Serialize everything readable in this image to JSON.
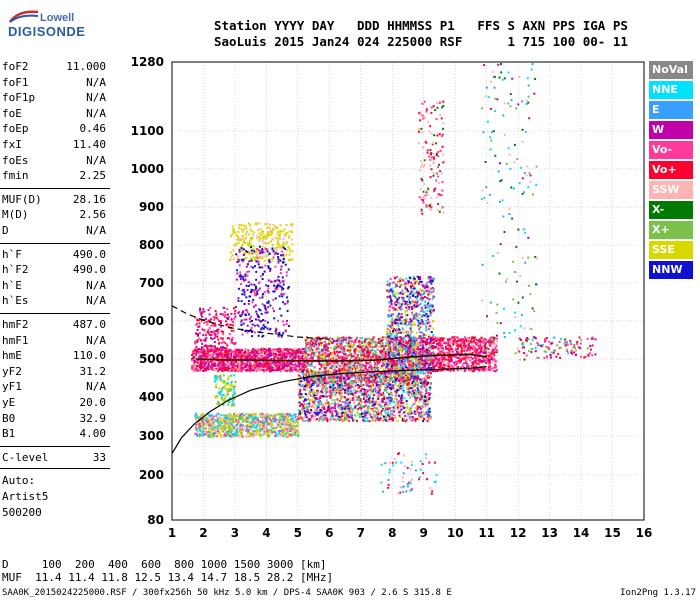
{
  "logo": {
    "line1": "Lowell",
    "line2": "DIGISONDE"
  },
  "header": {
    "line1": "Station YYYY DAY   DDD HHMMSS P1   FFS S AXN PPS IGA PS",
    "line2": "SaoLuis 2015 Jan24 024 225000 RSF      1 715 100 00- 11"
  },
  "params": [
    {
      "label": "foF2",
      "value": "11.000"
    },
    {
      "label": "foF1",
      "value": "N/A"
    },
    {
      "label": "foF1p",
      "value": "N/A"
    },
    {
      "label": "foE",
      "value": "N/A"
    },
    {
      "label": "foEp",
      "value": "0.46"
    },
    {
      "label": "fxI",
      "value": "11.40"
    },
    {
      "label": "foEs",
      "value": "N/A"
    },
    {
      "label": "fmin",
      "value": "2.25"
    },
    {
      "label": "MUF(D)",
      "value": "28.16"
    },
    {
      "label": "M(D)",
      "value": "2.56"
    },
    {
      "label": "D",
      "value": "N/A"
    },
    {
      "label": "h`F",
      "value": "490.0"
    },
    {
      "label": "h`F2",
      "value": "490.0"
    },
    {
      "label": "h`E",
      "value": "N/A"
    },
    {
      "label": "h`Es",
      "value": "N/A"
    },
    {
      "label": "hmF2",
      "value": "487.0"
    },
    {
      "label": "hmF1",
      "value": "N/A"
    },
    {
      "label": "hmE",
      "value": "110.0"
    },
    {
      "label": "yF2",
      "value": "31.2"
    },
    {
      "label": "yF1",
      "value": "N/A"
    },
    {
      "label": "yE",
      "value": "20.0"
    },
    {
      "label": "B0",
      "value": "32.9"
    },
    {
      "label": "B1",
      "value": "4.00"
    },
    {
      "label": "C-level",
      "value": "33"
    }
  ],
  "auto": {
    "line1": "Auto:",
    "line2": "Artist5",
    "line3": "500200"
  },
  "legend": [
    {
      "label": "NoVal",
      "color": "#888888"
    },
    {
      "label": "NNE",
      "color": "#00e0ff"
    },
    {
      "label": "E",
      "color": "#3aa0ff"
    },
    {
      "label": "W",
      "color": "#c000a8"
    },
    {
      "label": "Vo-",
      "color": "#ff3a9a"
    },
    {
      "label": "Vo+",
      "color": "#ff0030"
    },
    {
      "label": "SSW",
      "color": "#ffb4b4"
    },
    {
      "label": "X-",
      "color": "#007a00"
    },
    {
      "label": "X+",
      "color": "#7ac04a"
    },
    {
      "label": "SSE",
      "color": "#d8d800"
    },
    {
      "label": "NNW",
      "color": "#1010d0"
    }
  ],
  "bottom": {
    "line1": "D     100  200  400  600  800 1000 1500 3000 [km]",
    "line2": "MUF  11.4 11.4 11.8 12.5 13.4 14.7 18.5 28.2 [MHz]"
  },
  "footer": "SAA0K_2015024225000.RSF / 300fx256h 50 kHz 5.0 km / DPS-4 SAA0K 903 / 2.6 S 315.8 E",
  "version": "Ion2Png 1.3.17",
  "chart_data": {
    "type": "scatter",
    "xlim": [
      1,
      16
    ],
    "ylim": [
      80,
      1280
    ],
    "x_ticks": [
      "1",
      "2",
      "3",
      "4",
      "5",
      "6",
      "7",
      "8",
      "9",
      "10",
      "11",
      "12",
      "13",
      "14",
      "15",
      "16"
    ],
    "y_ticks": [
      "80",
      "200",
      "300",
      "400",
      "500",
      "600",
      "700",
      "800",
      "900",
      "1000",
      "1100",
      "1280"
    ],
    "grid": true,
    "curves": {
      "F2_trace": {
        "x": [
          1.75,
          2.5,
          3.5,
          4.5,
          5.5,
          6.5,
          7.5,
          8.5,
          9.5,
          10.5,
          11.0
        ],
        "y": [
          500,
          498,
          497,
          496,
          495,
          495,
          497,
          505,
          510,
          512,
          505
        ]
      },
      "profile": {
        "x": [
          1.0,
          1.3,
          1.7,
          2.2,
          2.8,
          3.5,
          4.5,
          5.5,
          6.5,
          7.5,
          8.5,
          9.5,
          10.5,
          11.0
        ],
        "y": [
          255,
          295,
          330,
          362,
          392,
          418,
          440,
          455,
          462,
          467,
          470,
          473,
          476,
          480
        ]
      },
      "upper_dashed": {
        "x": [
          1.0,
          1.5,
          2.0,
          2.5,
          3.0,
          4.0,
          5.0,
          6.0
        ],
        "y": [
          640,
          618,
          602,
          590,
          580,
          568,
          558,
          552
        ]
      }
    }
  }
}
